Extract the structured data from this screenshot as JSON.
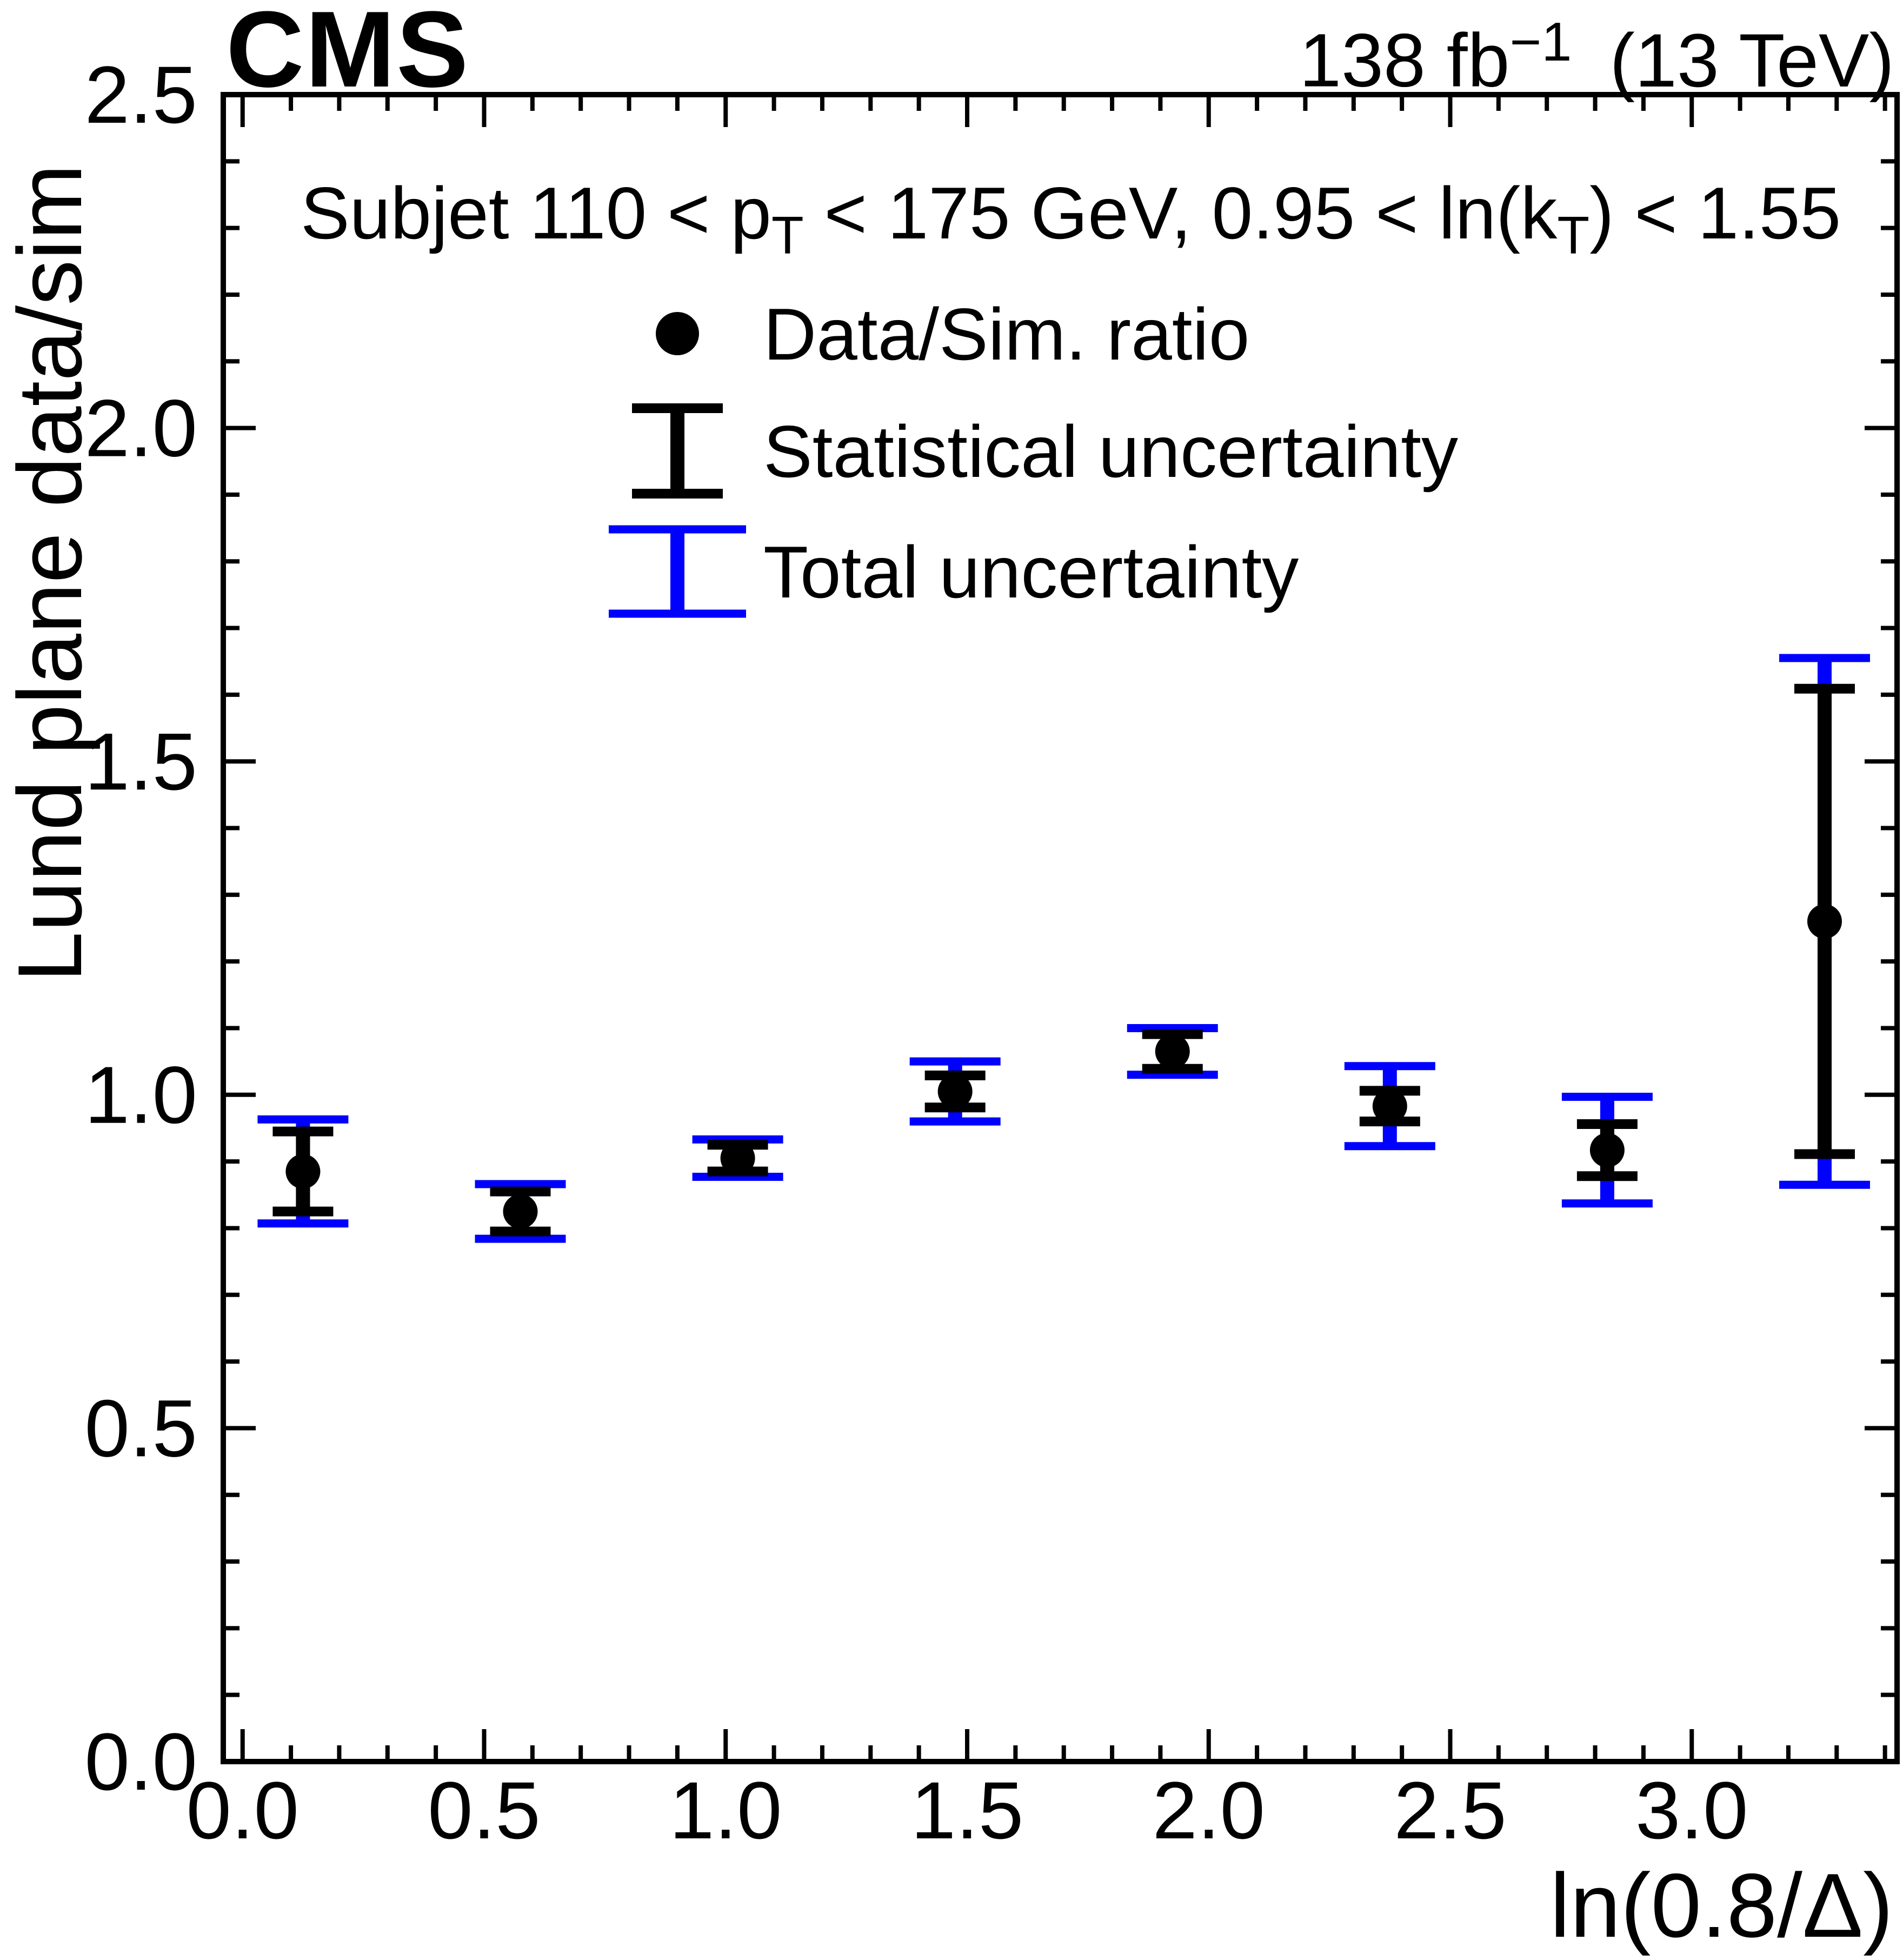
{
  "header": {
    "experiment": "CMS",
    "lumi_prefix": "138 fb",
    "lumi_sup": "−1",
    "lumi_suffix": "(13 TeV)"
  },
  "chart_data": {
    "type": "scatter",
    "subtitle": {
      "part1": "Subjet 110 < p",
      "sub1": "T",
      "part2": " < 175 GeV, 0.95 < ln(k",
      "sub2": "T",
      "part3": ") < 1.55"
    },
    "xlabel": "ln(0.8/Δ)",
    "ylabel": "Lund plane data/sim",
    "xlim": [
      -0.04,
      3.425
    ],
    "ylim": [
      0.0,
      2.5
    ],
    "x_major_ticks": [
      0.0,
      0.5,
      1.0,
      1.5,
      2.0,
      2.5,
      3.0
    ],
    "x_tick_labels": [
      "0.0",
      "0.5",
      "1.0",
      "1.5",
      "2.0",
      "2.5",
      "3.0"
    ],
    "x_minor_step": 0.1,
    "y_major_ticks": [
      0.0,
      0.5,
      1.0,
      1.5,
      2.0,
      2.5
    ],
    "y_tick_labels": [
      "0.0",
      "0.5",
      "1.0",
      "1.5",
      "2.0",
      "2.5"
    ],
    "grid": false,
    "legend_position": "top-left-inside",
    "legend": [
      {
        "marker": "filled-circle",
        "color": "#000000",
        "label": "Data/Sim. ratio"
      },
      {
        "marker": "error-bar",
        "color": "#000000",
        "label": "Statistical uncertainty"
      },
      {
        "marker": "error-bar",
        "color": "#0000ff",
        "label": "Total uncertainty"
      }
    ],
    "series": [
      {
        "name": "Data/Sim. ratio",
        "points": [
          {
            "x": 0.125,
            "y": 0.885,
            "stat": 0.06,
            "total": 0.078
          },
          {
            "x": 0.575,
            "y": 0.825,
            "stat": 0.03,
            "total": 0.041
          },
          {
            "x": 1.025,
            "y": 0.905,
            "stat": 0.02,
            "total": 0.028
          },
          {
            "x": 1.475,
            "y": 1.005,
            "stat": 0.024,
            "total": 0.045
          },
          {
            "x": 1.925,
            "y": 1.065,
            "stat": 0.026,
            "total": 0.035
          },
          {
            "x": 2.375,
            "y": 0.983,
            "stat": 0.023,
            "total": 0.06
          },
          {
            "x": 2.825,
            "y": 0.917,
            "stat": 0.039,
            "total": 0.08
          },
          {
            "x": 3.275,
            "y": 1.26,
            "stat": 0.349,
            "total": 0.395
          }
        ]
      }
    ],
    "colors": {
      "points": "#000000",
      "stat": "#000000",
      "total": "#0000ff",
      "frame": "#000000"
    }
  }
}
